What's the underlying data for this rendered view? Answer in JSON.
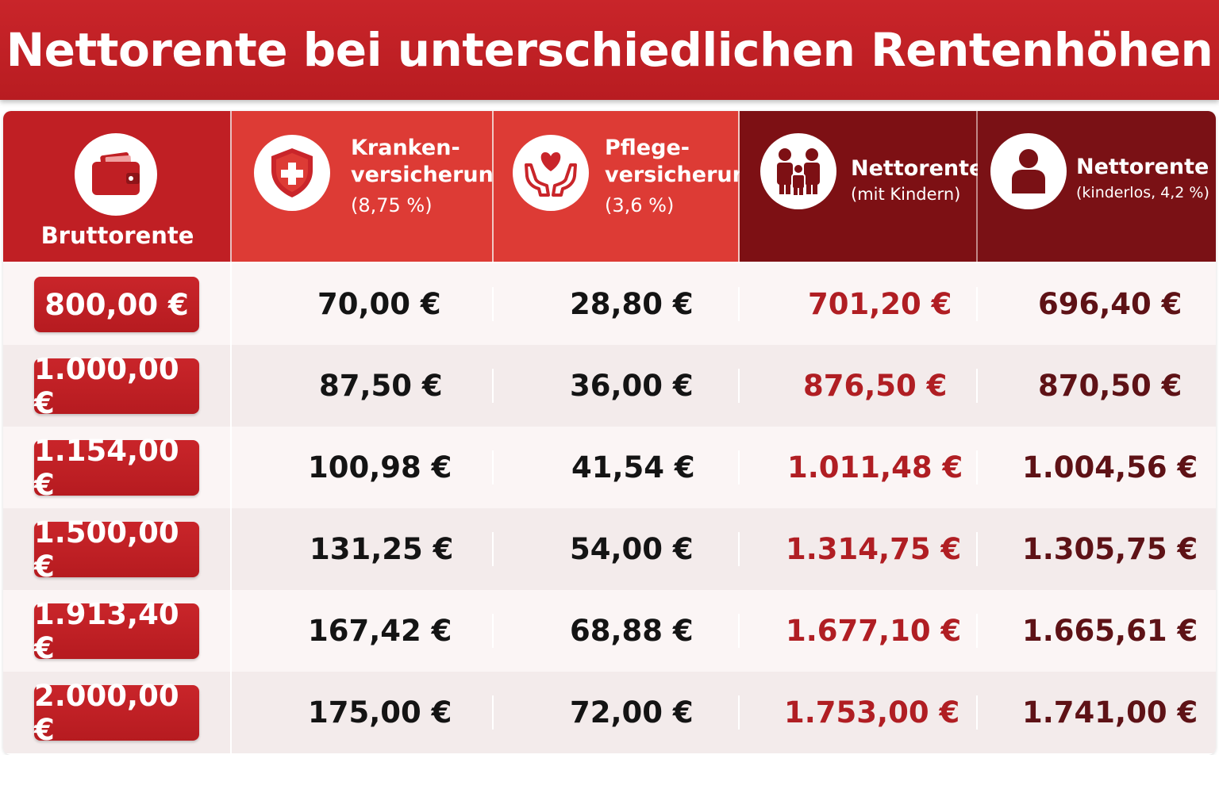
{
  "title": "Nettorente bei unterschiedlichen Rentenhöhen",
  "headers": {
    "brutto": {
      "label": "Bruttorente",
      "icon": "wallet-icon"
    },
    "kranken": {
      "line1": "Kranken-",
      "line2": "versicherung",
      "rate": "(8,75 %)",
      "icon": "shield-cross-icon"
    },
    "pflege": {
      "line1": "Pflege-",
      "line2": "versicherung",
      "rate": "(3,6 %)",
      "icon": "heart-hands-icon"
    },
    "netto_kinder": {
      "line1": "Nettorente",
      "line2": "(mit Kindern)",
      "icon": "family-icon"
    },
    "netto_kinderlos": {
      "line1": "Nettorente",
      "line2": "(kinderlos, 4,2 %)",
      "icon": "person-icon"
    }
  },
  "rows": [
    {
      "brutto": "800,00 €",
      "kranken": "70,00 €",
      "pflege": "28,80 €",
      "netto_kinder": "701,20 €",
      "netto_kinderlos": "696,40 €"
    },
    {
      "brutto": "1.000,00 €",
      "kranken": "87,50 €",
      "pflege": "36,00 €",
      "netto_kinder": "876,50 €",
      "netto_kinderlos": "870,50 €"
    },
    {
      "brutto": "1.154,00 €",
      "kranken": "100,98 €",
      "pflege": "41,54 €",
      "netto_kinder": "1.011,48 €",
      "netto_kinderlos": "1.004,56 €"
    },
    {
      "brutto": "1.500,00 €",
      "kranken": "131,25 €",
      "pflege": "54,00 €",
      "netto_kinder": "1.314,75 €",
      "netto_kinderlos": "1.305,75 €"
    },
    {
      "brutto": "1.913,40 €",
      "kranken": "167,42 €",
      "pflege": "68,88 €",
      "netto_kinder": "1.677,10 €",
      "netto_kinderlos": "1.665,61 €"
    },
    {
      "brutto": "2.000,00 €",
      "kranken": "175,00 €",
      "pflege": "72,00 €",
      "netto_kinder": "1.753,00 €",
      "netto_kinderlos": "1.741,00 €"
    }
  ],
  "colors": {
    "brand_red": "#c01f24",
    "light_red": "#dd3b35",
    "dark_red": "#7d1014"
  }
}
